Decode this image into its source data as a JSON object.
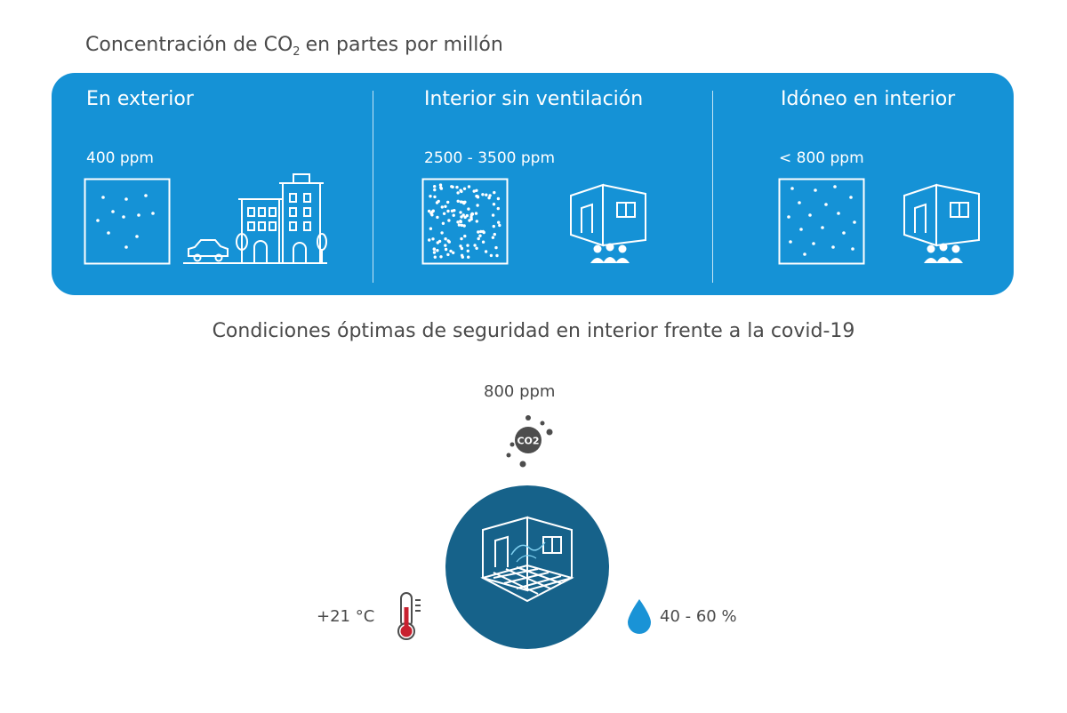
{
  "header": {
    "title_before": "Concentración de CO",
    "title_sub": "2",
    "title_after": "en partes por millón"
  },
  "columns": [
    {
      "title": "En exterior",
      "value": "400 ppm"
    },
    {
      "title": "Interior sin ventilación",
      "value": "2500 - 3500 ppm"
    },
    {
      "title": "Idóneo en interior",
      "value": "< 800 ppm"
    }
  ],
  "conditions": {
    "title": "Condiciones óptimas de seguridad en interior frente a la covid-19",
    "co2_value": "800 ppm",
    "co2_badge": "CO2",
    "temperature": "+21 °C",
    "humidity": "40 - 60 %"
  },
  "colors": {
    "panel_blue": "#1592d6",
    "circle_teal": "#16628a",
    "thermometer_red": "#c8202f",
    "drop_blue": "#1a93d6",
    "text_gray": "#4a4a4a"
  },
  "icons": [
    "particle-box-icon",
    "buildings-icon",
    "car-icon",
    "room-people-icon",
    "co2-icon",
    "room-icon",
    "thermometer-icon",
    "water-drop-icon"
  ]
}
